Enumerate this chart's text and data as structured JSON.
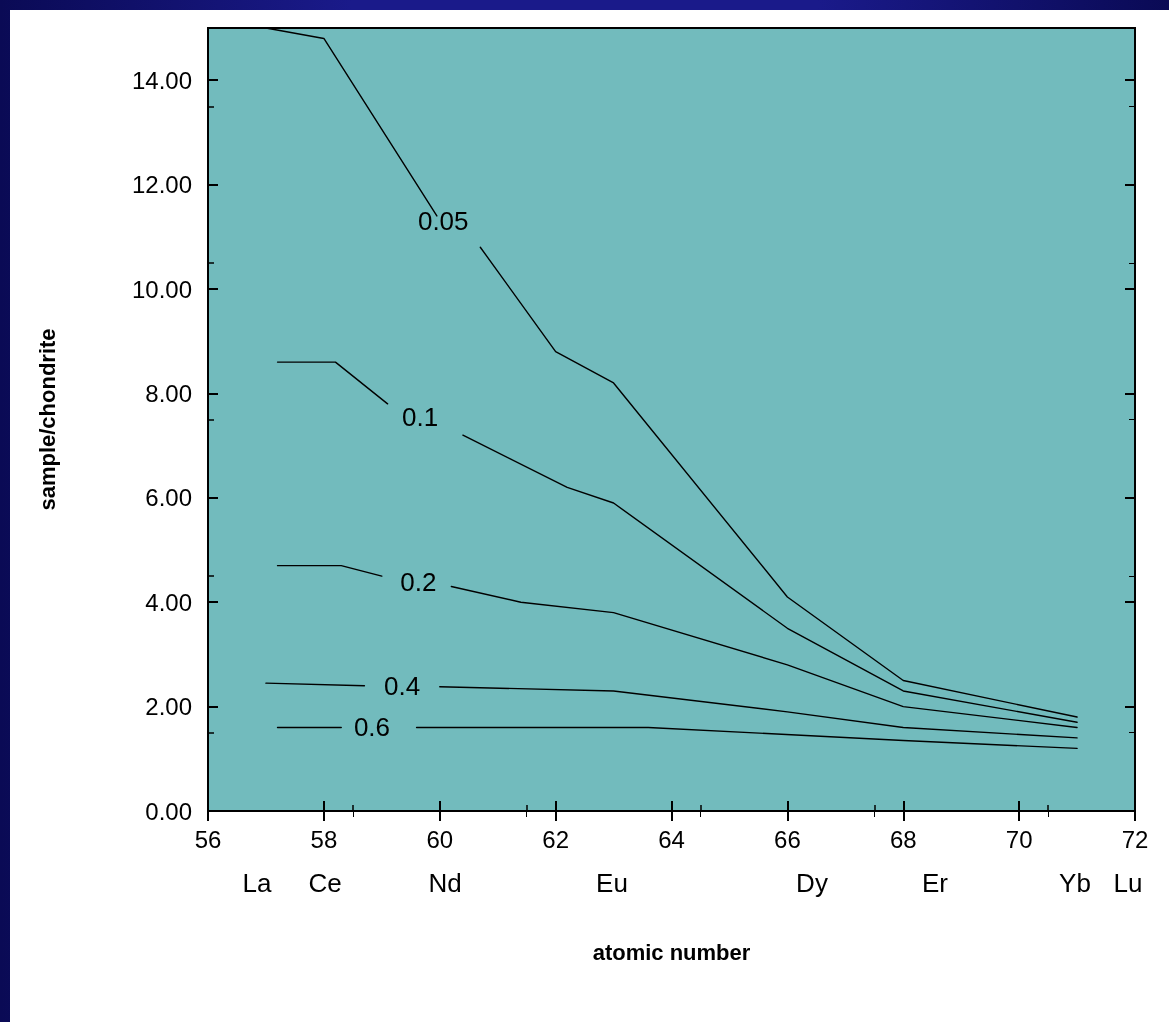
{
  "chart_data": {
    "type": "line",
    "xlabel": "atomic number",
    "ylabel": "sample/chondrite",
    "xlim": [
      56,
      72
    ],
    "xticks": [
      56,
      58,
      60,
      62,
      64,
      66,
      68,
      70,
      72
    ],
    "ylim": [
      0,
      15
    ],
    "yticks": [
      {
        "value": 0,
        "label": "0.00"
      },
      {
        "value": 2,
        "label": "2.00"
      },
      {
        "value": 4,
        "label": "4.00"
      },
      {
        "value": 6,
        "label": "6.00"
      },
      {
        "value": 8,
        "label": "8.00"
      },
      {
        "value": 10,
        "label": "10.00"
      },
      {
        "value": 12,
        "label": "12.00"
      },
      {
        "value": 14,
        "label": "14.00"
      }
    ],
    "annotations": [
      "La",
      "Ce",
      "Nd",
      "Eu",
      "Dy",
      "Er",
      "Yb",
      "Lu"
    ],
    "grid": false,
    "legend": false,
    "line_style": "solid",
    "series": [
      {
        "name": "0.05",
        "color": "#000000",
        "x": [
          57,
          58,
          59.95,
          60.06,
          60.7,
          62,
          63,
          66,
          68,
          71
        ],
        "values": [
          15.0,
          14.8,
          11.4,
          null,
          10.8,
          8.8,
          8.2,
          4.1,
          2.5,
          1.8
        ]
      },
      {
        "name": "0.1",
        "color": "#000000",
        "x": [
          57.2,
          58.2,
          59.1,
          59.66,
          60.4,
          62.2,
          63,
          66,
          68,
          71
        ],
        "values": [
          8.6,
          8.6,
          7.8,
          null,
          7.2,
          6.2,
          5.9,
          3.5,
          2.3,
          1.7
        ]
      },
      {
        "name": "0.2",
        "color": "#000000",
        "x": [
          57.2,
          58.3,
          59,
          59.63,
          60.2,
          61.4,
          63,
          66,
          68,
          71
        ],
        "values": [
          4.7,
          4.7,
          4.5,
          null,
          4.3,
          4.0,
          3.8,
          2.8,
          2.0,
          1.6
        ]
      },
      {
        "name": "0.4",
        "color": "#000000",
        "x": [
          57,
          58.7,
          59.35,
          60,
          63,
          66,
          68,
          71
        ],
        "values": [
          2.45,
          2.4,
          null,
          2.38,
          2.3,
          1.9,
          1.6,
          1.4
        ]
      },
      {
        "name": "0.6",
        "color": "#000000",
        "x": [
          57.2,
          58.3,
          58.83,
          59.6,
          63.6,
          68,
          71
        ],
        "values": [
          1.6,
          1.6,
          null,
          1.6,
          1.6,
          1.35,
          1.2
        ]
      }
    ]
  }
}
